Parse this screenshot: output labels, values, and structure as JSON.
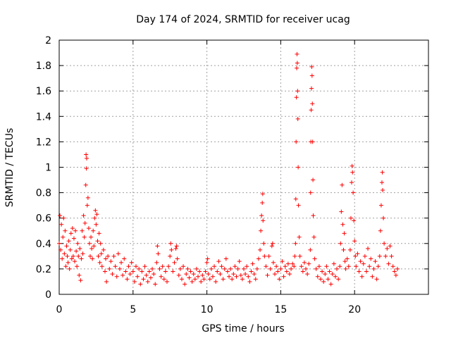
{
  "chart_data": {
    "type": "scatter",
    "title": "Day 174 of 2024, SRMTID for receiver ucag",
    "xlabel": "GPS time / hours",
    "ylabel": "SRMTID / TECUs",
    "xlim": [
      0,
      25
    ],
    "ylim": [
      0,
      2
    ],
    "xticks": [
      0,
      5,
      10,
      15,
      20
    ],
    "yticks": [
      0,
      0.2,
      0.4,
      0.6,
      0.8,
      1,
      1.2,
      1.4,
      1.6,
      1.8,
      2
    ],
    "xtick_labels": [
      "0",
      "5",
      "10",
      "15",
      "20"
    ],
    "ytick_labels": [
      "0",
      "0.2",
      "0.4",
      "0.6",
      "0.8",
      "1",
      "1.2",
      "1.4",
      "1.6",
      "1.8",
      "2"
    ],
    "grid": true,
    "marker": "+",
    "color": "#ff0000",
    "series": [
      {
        "name": "SRMTID",
        "points": [
          [
            0.0,
            0.4
          ],
          [
            0.05,
            0.62
          ],
          [
            0.1,
            0.35
          ],
          [
            0.15,
            0.55
          ],
          [
            0.2,
            0.28
          ],
          [
            0.25,
            0.45
          ],
          [
            0.3,
            0.6
          ],
          [
            0.35,
            0.32
          ],
          [
            0.4,
            0.5
          ],
          [
            0.45,
            0.22
          ],
          [
            0.5,
            0.38
          ],
          [
            0.55,
            0.3
          ],
          [
            0.6,
            0.25
          ],
          [
            0.65,
            0.42
          ],
          [
            0.7,
            0.2
          ],
          [
            0.75,
            0.35
          ],
          [
            0.8,
            0.48
          ],
          [
            0.85,
            0.28
          ],
          [
            0.9,
            0.52
          ],
          [
            0.95,
            0.3
          ],
          [
            1.0,
            0.44
          ],
          [
            1.05,
            0.26
          ],
          [
            1.1,
            0.5
          ],
          [
            1.15,
            0.34
          ],
          [
            1.2,
            0.22
          ],
          [
            1.25,
            0.4
          ],
          [
            1.3,
            0.3
          ],
          [
            1.35,
            0.15
          ],
          [
            1.4,
            0.36
          ],
          [
            1.45,
            0.11
          ],
          [
            1.5,
            0.28
          ],
          [
            1.55,
            0.5
          ],
          [
            1.6,
            0.32
          ],
          [
            1.65,
            0.62
          ],
          [
            1.7,
            0.45
          ],
          [
            1.75,
            0.56
          ],
          [
            1.8,
            0.86
          ],
          [
            1.82,
            1.1
          ],
          [
            1.84,
            0.99
          ],
          [
            1.86,
            1.07
          ],
          [
            1.9,
            0.7
          ],
          [
            1.95,
            0.76
          ],
          [
            2.0,
            0.52
          ],
          [
            2.05,
            0.4
          ],
          [
            2.1,
            0.3
          ],
          [
            2.15,
            0.45
          ],
          [
            2.2,
            0.36
          ],
          [
            2.25,
            0.28
          ],
          [
            2.3,
            0.5
          ],
          [
            2.35,
            0.38
          ],
          [
            2.4,
            0.6
          ],
          [
            2.45,
            0.66
          ],
          [
            2.5,
            0.55
          ],
          [
            2.55,
            0.63
          ],
          [
            2.6,
            0.42
          ],
          [
            2.65,
            0.3
          ],
          [
            2.7,
            0.48
          ],
          [
            2.75,
            0.25
          ],
          [
            2.8,
            0.4
          ],
          [
            2.85,
            0.32
          ],
          [
            2.9,
            0.22
          ],
          [
            3.0,
            0.35
          ],
          [
            3.1,
            0.18
          ],
          [
            3.15,
            0.28
          ],
          [
            3.2,
            0.1
          ],
          [
            3.3,
            0.3
          ],
          [
            3.4,
            0.2
          ],
          [
            3.5,
            0.26
          ],
          [
            3.6,
            0.16
          ],
          [
            3.7,
            0.3
          ],
          [
            3.8,
            0.22
          ],
          [
            3.9,
            0.14
          ],
          [
            4.0,
            0.32
          ],
          [
            4.1,
            0.2
          ],
          [
            4.2,
            0.25
          ],
          [
            4.3,
            0.15
          ],
          [
            4.4,
            0.28
          ],
          [
            4.5,
            0.18
          ],
          [
            4.6,
            0.12
          ],
          [
            4.7,
            0.22
          ],
          [
            4.8,
            0.16
          ],
          [
            4.9,
            0.25
          ],
          [
            5.0,
            0.18
          ],
          [
            5.1,
            0.1
          ],
          [
            5.2,
            0.22
          ],
          [
            5.3,
            0.14
          ],
          [
            5.4,
            0.2
          ],
          [
            5.5,
            0.08
          ],
          [
            5.6,
            0.18
          ],
          [
            5.7,
            0.12
          ],
          [
            5.8,
            0.22
          ],
          [
            5.9,
            0.15
          ],
          [
            6.0,
            0.1
          ],
          [
            6.1,
            0.18
          ],
          [
            6.2,
            0.13
          ],
          [
            6.3,
            0.2
          ],
          [
            6.4,
            0.16
          ],
          [
            6.5,
            0.08
          ],
          [
            6.6,
            0.25
          ],
          [
            6.65,
            0.38
          ],
          [
            6.7,
            0.32
          ],
          [
            6.8,
            0.2
          ],
          [
            6.9,
            0.14
          ],
          [
            7.0,
            0.22
          ],
          [
            7.1,
            0.12
          ],
          [
            7.2,
            0.18
          ],
          [
            7.3,
            0.1
          ],
          [
            7.4,
            0.22
          ],
          [
            7.5,
            0.3
          ],
          [
            7.55,
            0.4
          ],
          [
            7.6,
            0.35
          ],
          [
            7.7,
            0.18
          ],
          [
            7.8,
            0.25
          ],
          [
            7.9,
            0.36
          ],
          [
            7.95,
            0.38
          ],
          [
            8.0,
            0.28
          ],
          [
            8.1,
            0.15
          ],
          [
            8.2,
            0.2
          ],
          [
            8.3,
            0.12
          ],
          [
            8.4,
            0.22
          ],
          [
            8.5,
            0.08
          ],
          [
            8.6,
            0.16
          ],
          [
            8.7,
            0.2
          ],
          [
            8.8,
            0.13
          ],
          [
            8.9,
            0.18
          ],
          [
            9.0,
            0.1
          ],
          [
            9.1,
            0.16
          ],
          [
            9.2,
            0.12
          ],
          [
            9.3,
            0.2
          ],
          [
            9.4,
            0.14
          ],
          [
            9.5,
            0.18
          ],
          [
            9.6,
            0.1
          ],
          [
            9.7,
            0.15
          ],
          [
            9.8,
            0.12
          ],
          [
            9.9,
            0.18
          ],
          [
            10.0,
            0.25
          ],
          [
            10.05,
            0.28
          ],
          [
            10.1,
            0.16
          ],
          [
            10.2,
            0.12
          ],
          [
            10.3,
            0.2
          ],
          [
            10.4,
            0.14
          ],
          [
            10.5,
            0.22
          ],
          [
            10.6,
            0.1
          ],
          [
            10.7,
            0.18
          ],
          [
            10.8,
            0.26
          ],
          [
            10.9,
            0.16
          ],
          [
            11.0,
            0.22
          ],
          [
            11.1,
            0.12
          ],
          [
            11.2,
            0.2
          ],
          [
            11.3,
            0.28
          ],
          [
            11.4,
            0.18
          ],
          [
            11.5,
            0.14
          ],
          [
            11.6,
            0.2
          ],
          [
            11.7,
            0.12
          ],
          [
            11.8,
            0.16
          ],
          [
            11.9,
            0.22
          ],
          [
            12.0,
            0.14
          ],
          [
            12.1,
            0.2
          ],
          [
            12.2,
            0.26
          ],
          [
            12.3,
            0.15
          ],
          [
            12.4,
            0.12
          ],
          [
            12.5,
            0.2
          ],
          [
            12.6,
            0.16
          ],
          [
            12.7,
            0.22
          ],
          [
            12.8,
            0.14
          ],
          [
            12.9,
            0.1
          ],
          [
            13.0,
            0.18
          ],
          [
            13.1,
            0.24
          ],
          [
            13.2,
            0.16
          ],
          [
            13.3,
            0.12
          ],
          [
            13.4,
            0.2
          ],
          [
            13.5,
            0.28
          ],
          [
            13.6,
            0.35
          ],
          [
            13.65,
            0.5
          ],
          [
            13.7,
            0.62
          ],
          [
            13.75,
            0.72
          ],
          [
            13.78,
            0.79
          ],
          [
            13.8,
            0.58
          ],
          [
            13.85,
            0.4
          ],
          [
            13.9,
            0.3
          ],
          [
            14.0,
            0.22
          ],
          [
            14.1,
            0.15
          ],
          [
            14.2,
            0.3
          ],
          [
            14.3,
            0.2
          ],
          [
            14.4,
            0.38
          ],
          [
            14.45,
            0.4
          ],
          [
            14.5,
            0.25
          ],
          [
            14.6,
            0.16
          ],
          [
            14.7,
            0.22
          ],
          [
            14.8,
            0.18
          ],
          [
            14.9,
            0.12
          ],
          [
            15.0,
            0.2
          ],
          [
            15.1,
            0.26
          ],
          [
            15.2,
            0.14
          ],
          [
            15.3,
            0.22
          ],
          [
            15.4,
            0.18
          ],
          [
            15.5,
            0.24
          ],
          [
            15.6,
            0.16
          ],
          [
            15.7,
            0.2
          ],
          [
            15.8,
            0.24
          ],
          [
            15.9,
            0.22
          ],
          [
            15.95,
            0.3
          ],
          [
            16.0,
            0.4
          ],
          [
            16.02,
            0.75
          ],
          [
            16.04,
            1.2
          ],
          [
            16.06,
            1.55
          ],
          [
            16.08,
            1.78
          ],
          [
            16.1,
            1.89
          ],
          [
            16.12,
            1.82
          ],
          [
            16.14,
            1.6
          ],
          [
            16.16,
            1.38
          ],
          [
            16.18,
            1.0
          ],
          [
            16.2,
            0.7
          ],
          [
            16.25,
            0.45
          ],
          [
            16.3,
            0.3
          ],
          [
            16.4,
            0.22
          ],
          [
            16.5,
            0.18
          ],
          [
            16.6,
            0.25
          ],
          [
            16.7,
            0.2
          ],
          [
            16.8,
            0.16
          ],
          [
            16.9,
            0.24
          ],
          [
            17.0,
            0.35
          ],
          [
            17.02,
            0.8
          ],
          [
            17.04,
            1.2
          ],
          [
            17.06,
            1.45
          ],
          [
            17.08,
            1.62
          ],
          [
            17.1,
            1.79
          ],
          [
            17.12,
            1.72
          ],
          [
            17.14,
            1.5
          ],
          [
            17.16,
            1.2
          ],
          [
            17.18,
            0.9
          ],
          [
            17.2,
            0.62
          ],
          [
            17.25,
            0.45
          ],
          [
            17.3,
            0.28
          ],
          [
            17.4,
            0.2
          ],
          [
            17.5,
            0.14
          ],
          [
            17.6,
            0.22
          ],
          [
            17.7,
            0.12
          ],
          [
            17.8,
            0.18
          ],
          [
            17.9,
            0.1
          ],
          [
            18.0,
            0.16
          ],
          [
            18.1,
            0.22
          ],
          [
            18.2,
            0.12
          ],
          [
            18.3,
            0.18
          ],
          [
            18.4,
            0.08
          ],
          [
            18.5,
            0.16
          ],
          [
            18.6,
            0.24
          ],
          [
            18.7,
            0.14
          ],
          [
            18.8,
            0.2
          ],
          [
            18.9,
            0.12
          ],
          [
            19.0,
            0.22
          ],
          [
            19.05,
            0.4
          ],
          [
            19.1,
            0.65
          ],
          [
            19.15,
            0.86
          ],
          [
            19.2,
            0.55
          ],
          [
            19.25,
            0.35
          ],
          [
            19.3,
            0.48
          ],
          [
            19.35,
            0.26
          ],
          [
            19.4,
            0.2
          ],
          [
            19.5,
            0.28
          ],
          [
            19.6,
            0.22
          ],
          [
            19.7,
            0.35
          ],
          [
            19.75,
            0.6
          ],
          [
            19.8,
            0.88
          ],
          [
            19.83,
            1.01
          ],
          [
            19.86,
            0.96
          ],
          [
            19.9,
            0.8
          ],
          [
            19.95,
            0.58
          ],
          [
            20.0,
            0.42
          ],
          [
            20.05,
            0.3
          ],
          [
            20.1,
            0.22
          ],
          [
            20.2,
            0.32
          ],
          [
            20.3,
            0.18
          ],
          [
            20.4,
            0.26
          ],
          [
            20.5,
            0.14
          ],
          [
            20.6,
            0.24
          ],
          [
            20.7,
            0.3
          ],
          [
            20.8,
            0.18
          ],
          [
            20.9,
            0.36
          ],
          [
            21.0,
            0.22
          ],
          [
            21.1,
            0.28
          ],
          [
            21.2,
            0.14
          ],
          [
            21.3,
            0.2
          ],
          [
            21.4,
            0.26
          ],
          [
            21.5,
            0.12
          ],
          [
            21.6,
            0.22
          ],
          [
            21.7,
            0.3
          ],
          [
            21.75,
            0.5
          ],
          [
            21.8,
            0.7
          ],
          [
            21.85,
            0.88
          ],
          [
            21.88,
            0.96
          ],
          [
            21.9,
            0.82
          ],
          [
            21.95,
            0.6
          ],
          [
            22.0,
            0.4
          ],
          [
            22.1,
            0.3
          ],
          [
            22.2,
            0.36
          ],
          [
            22.3,
            0.24
          ],
          [
            22.4,
            0.38
          ],
          [
            22.5,
            0.3
          ],
          [
            22.6,
            0.22
          ],
          [
            22.7,
            0.18
          ],
          [
            22.8,
            0.15
          ],
          [
            22.9,
            0.2
          ]
        ]
      }
    ]
  }
}
